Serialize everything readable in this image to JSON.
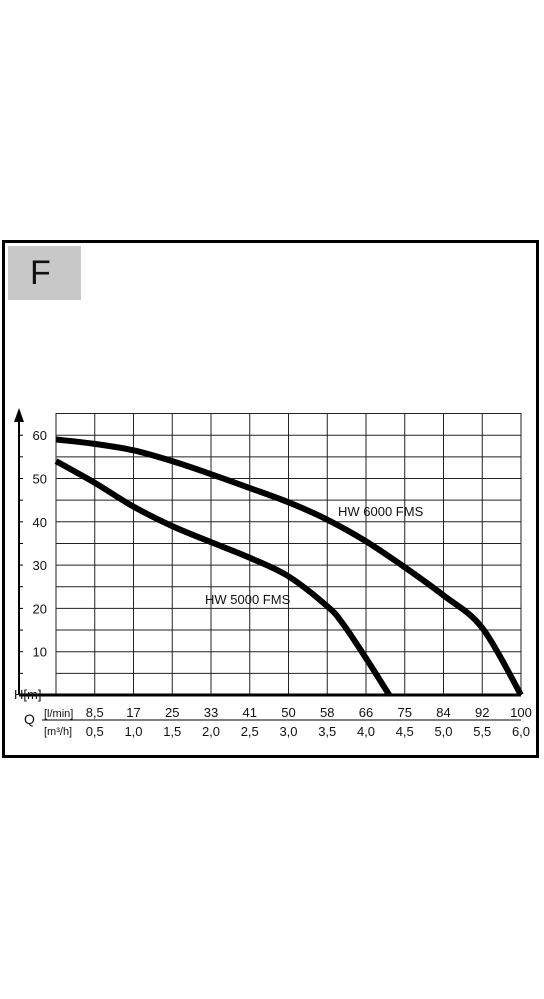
{
  "badge": "F",
  "chart_data": {
    "type": "line",
    "y_axis_label": "H[m]",
    "y_ticks": [
      10,
      20,
      30,
      40,
      50,
      60
    ],
    "ylim": [
      0,
      65
    ],
    "x_axis_label": "Q",
    "x_unit_lmin": "[l/min]",
    "x_unit_m3h": "[m³/h]",
    "x_ticks_lmin": [
      "8,5",
      "17",
      "25",
      "33",
      "41",
      "50",
      "58",
      "66",
      "75",
      "84",
      "92",
      "100"
    ],
    "x_ticks_m3h": [
      "0,5",
      "1,0",
      "1,5",
      "2,0",
      "2,5",
      "3,0",
      "3,5",
      "4,0",
      "4,5",
      "5,0",
      "5,5",
      "6,0"
    ],
    "xlim": [
      0,
      6.0
    ],
    "grid": true,
    "series": [
      {
        "name": "HW 6000 FMS",
        "x": [
          0,
          0.5,
          1.0,
          1.5,
          2.0,
          2.5,
          3.0,
          3.5,
          4.0,
          4.5,
          5.0,
          5.5,
          6.0
        ],
        "y": [
          59,
          58,
          56.5,
          54,
          51,
          47.8,
          44.5,
          40.5,
          35.5,
          29.5,
          23,
          15.5,
          0
        ]
      },
      {
        "name": "HW 5000 FMS",
        "x": [
          0,
          0.5,
          1.0,
          1.5,
          2.0,
          2.5,
          3.0,
          3.5,
          3.7,
          4.0,
          4.3
        ],
        "y": [
          54,
          49,
          43.5,
          39,
          35.3,
          31.7,
          27.4,
          20.5,
          16.5,
          8.5,
          0
        ]
      }
    ]
  }
}
